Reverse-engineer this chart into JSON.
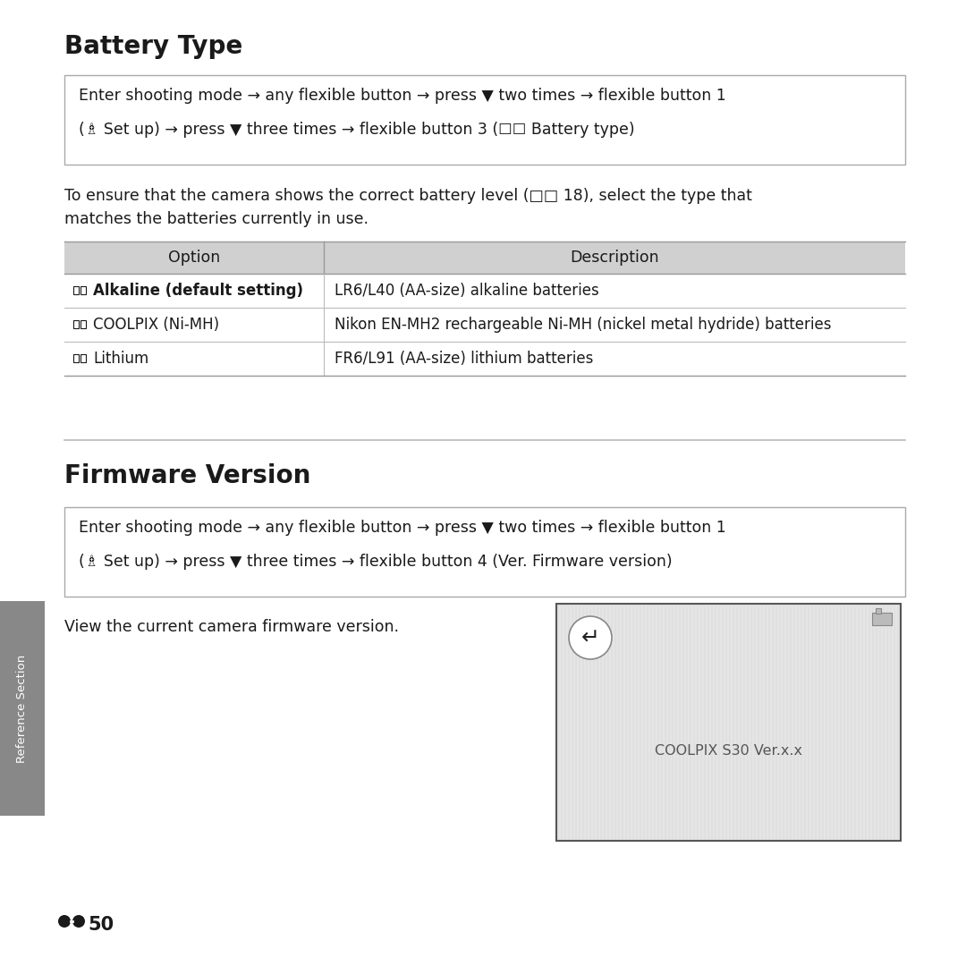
{
  "title1": "Battery Type",
  "title2": "Firmware Version",
  "box1_line1": "Enter shooting mode → any flexible button → press ▼ two times → flexible button 1",
  "box1_line2": "(♗ Set up) → press ▼ three times → flexible button 3 (☐☐ Battery type)",
  "body_text1": "To ensure that the camera shows the correct battery level (□□ 18), select the type that",
  "body_text2": "matches the batteries currently in use.",
  "table_header_option": "Option",
  "table_header_desc": "Description",
  "row_options_text": [
    "Alkaline (default setting)",
    "COOLPIX (Ni-MH)",
    "Lithium"
  ],
  "row_descs": [
    "LR6/L40 (AA-size) alkaline batteries",
    "Nikon EN-MH2 rechargeable Ni-MH (nickel metal hydride) batteries",
    "FR6/L91 (AA-size) lithium batteries"
  ],
  "box2_line1": "Enter shooting mode → any flexible button → press ▼ two times → flexible button 1",
  "box2_line2": "(♗ Set up) → press ▼ three times → flexible button 4 (Ver. Firmware version)",
  "firmware_body": "View the current camera firmware version.",
  "screen_text": "COOLPIX S30 Ver.x.x",
  "sidebar_text": "Reference Section",
  "page_num": "50",
  "bg_color": "#ffffff",
  "text_color": "#1a1a1a",
  "table_header_bg": "#d0d0d0",
  "border_color": "#aaaaaa",
  "sidebar_color": "#888888",
  "screen_bg": "#e5e5e5",
  "screen_border": "#555555",
  "divider_color": "#bbbbbb",
  "table_line_color": "#999999"
}
